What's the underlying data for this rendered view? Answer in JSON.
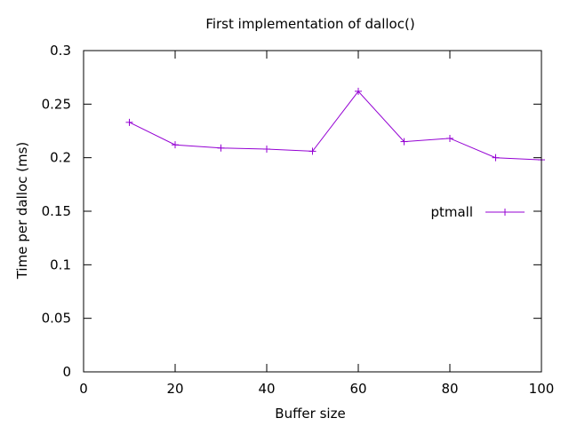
{
  "chart_data": {
    "type": "line",
    "title": "First implementation of dalloc()",
    "xlabel": "Buffer size",
    "ylabel": "Time per dalloc (ms)",
    "xlim": [
      0,
      100
    ],
    "ylim": [
      0,
      0.3
    ],
    "xticks": [
      0,
      20,
      40,
      60,
      80,
      100
    ],
    "yticks": [
      0,
      0.05,
      0.1,
      0.15,
      0.2,
      0.25,
      0.3
    ],
    "xtick_labels": [
      "0",
      "20",
      "40",
      "60",
      "80",
      "100"
    ],
    "ytick_labels": [
      "0",
      "0.05",
      "0.1",
      "0.15",
      "0.2",
      "0.25",
      "0.3"
    ],
    "grid": false,
    "legend_position": "right",
    "series": [
      {
        "name": "ptmall",
        "color": "#9400d3",
        "marker": "plus",
        "x": [
          10,
          20,
          30,
          40,
          50,
          60,
          70,
          80,
          90,
          100
        ],
        "y": [
          0.233,
          0.212,
          0.209,
          0.208,
          0.206,
          0.262,
          0.215,
          0.218,
          0.2,
          0.198
        ]
      }
    ]
  }
}
